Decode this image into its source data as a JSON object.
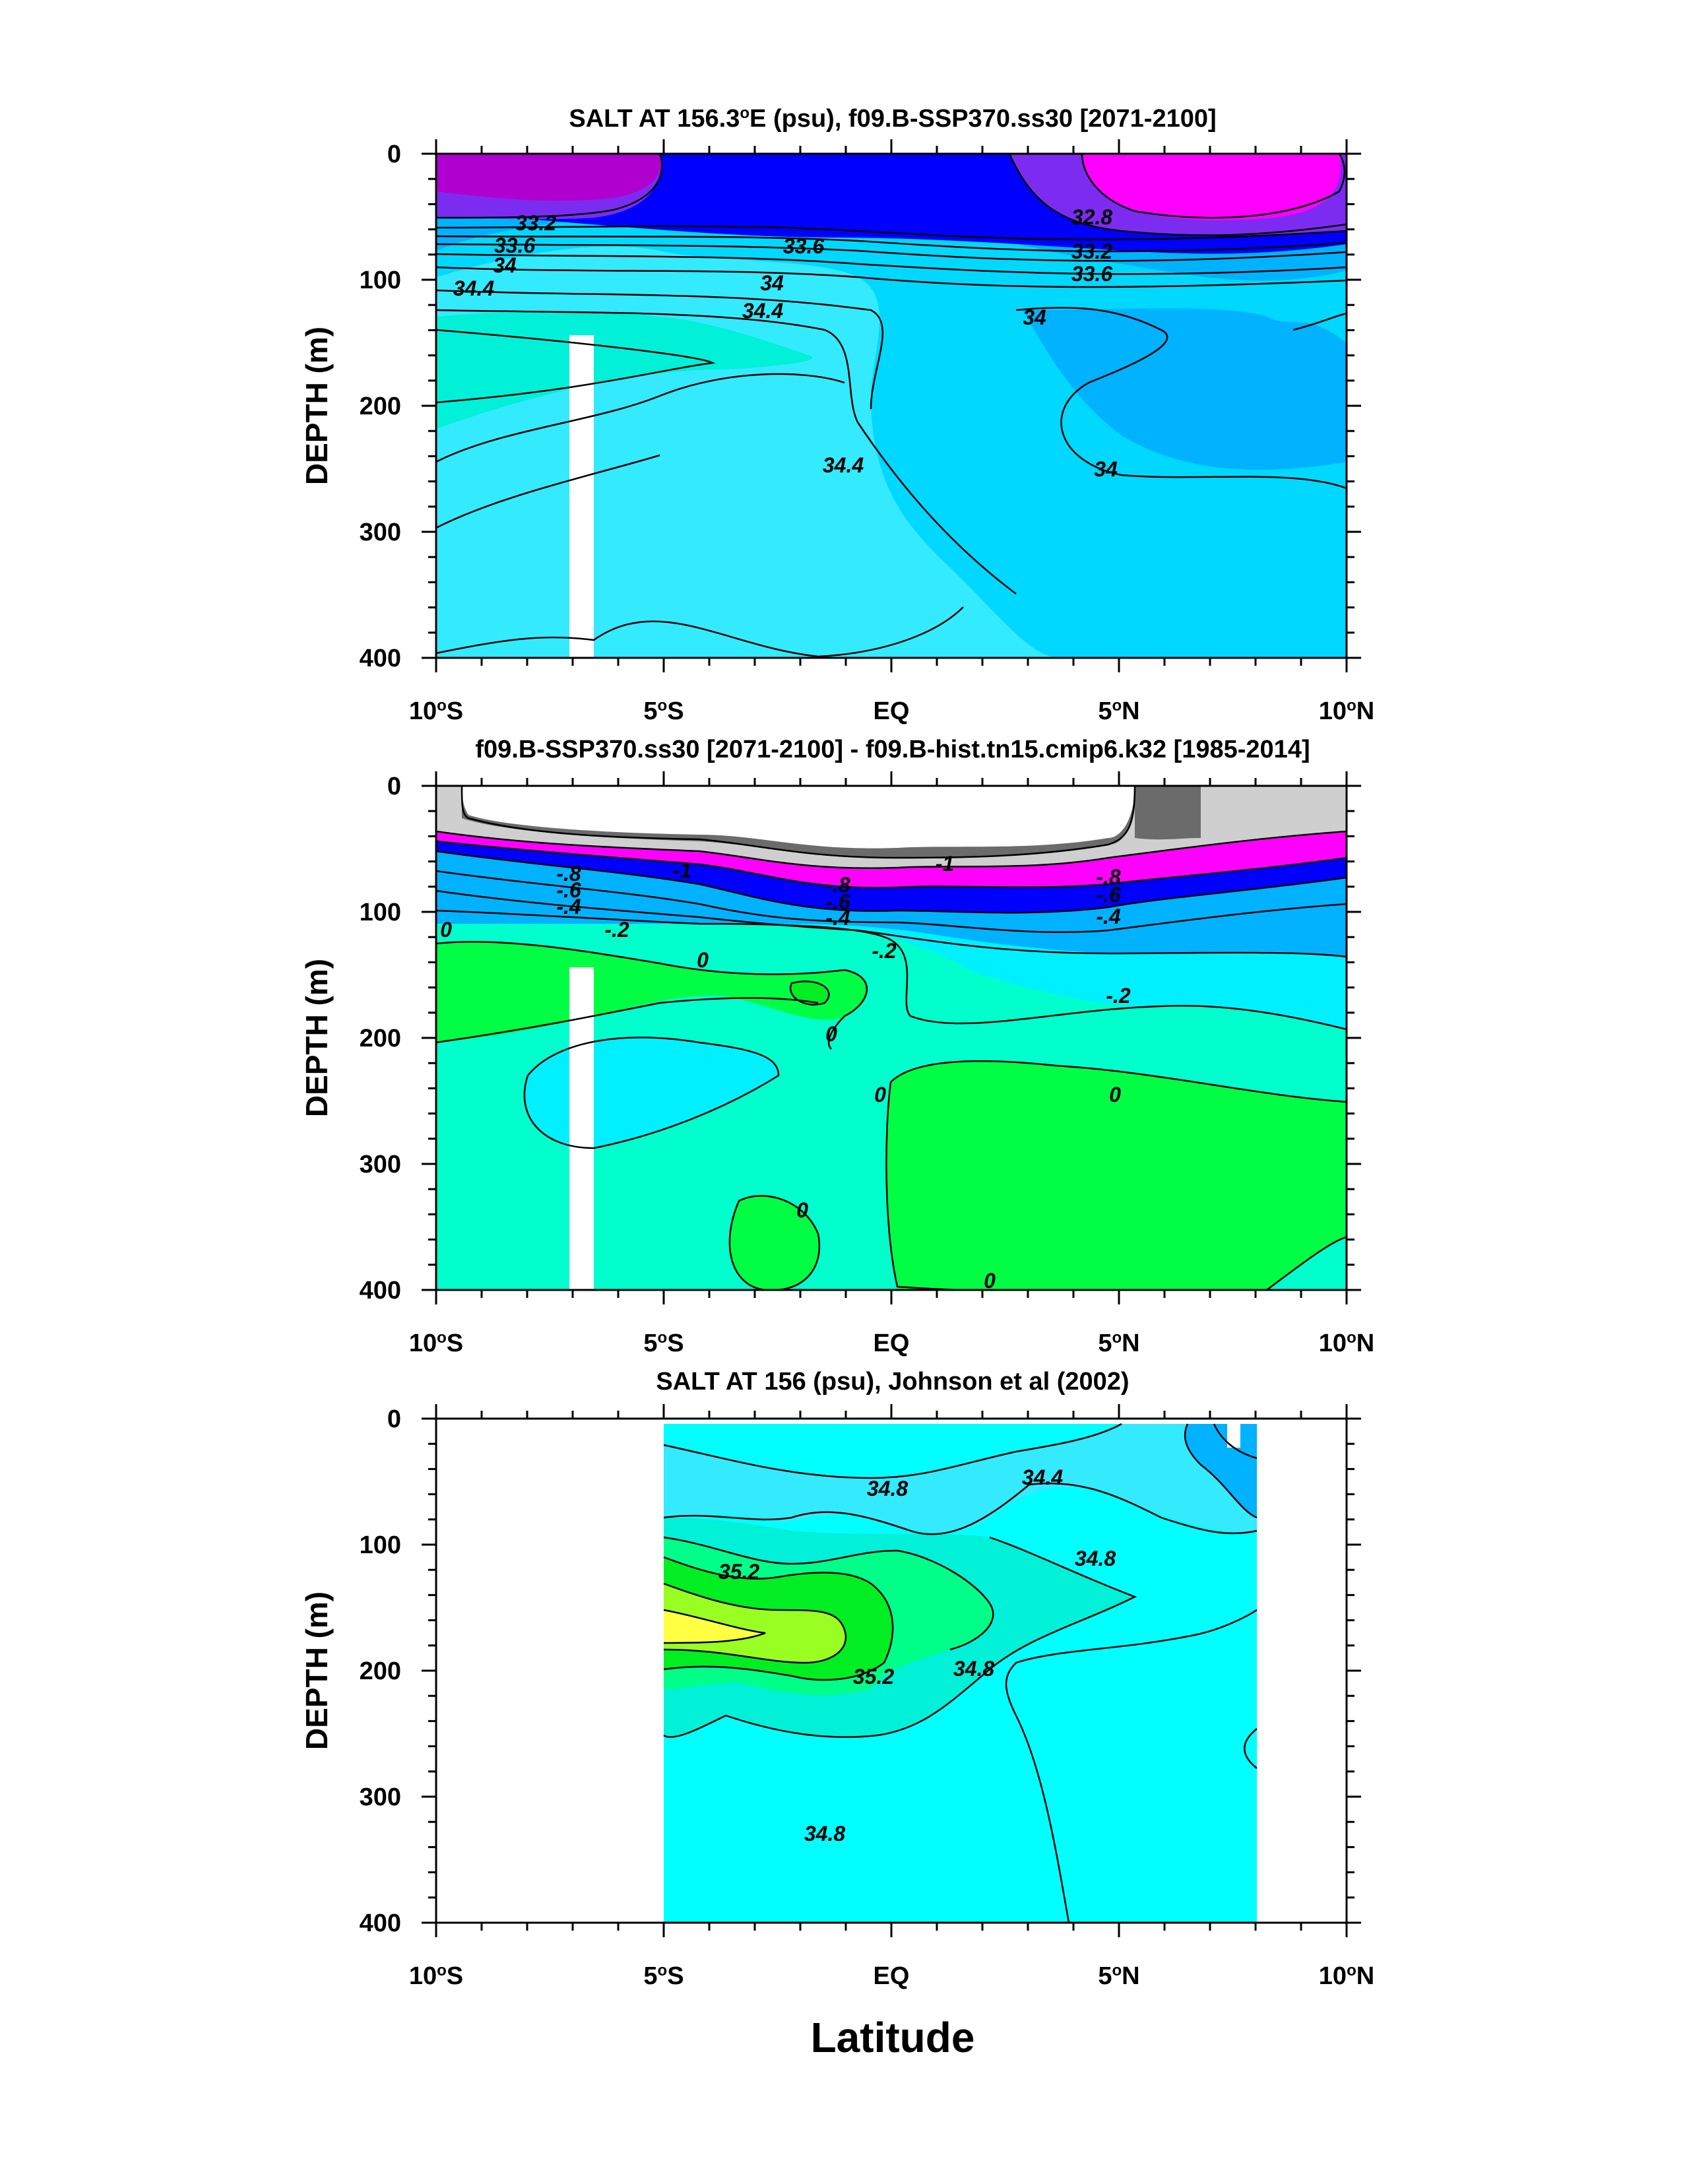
{
  "chart_data": [
    {
      "type": "contour",
      "title": "SALT AT 156.3°E (psu), f09.B-SSP370.ss30 [2071-2100]",
      "title_main": "SALT AT 156.3",
      "title_sup": "o",
      "title_rest": "E (psu), f09.B-SSP370.ss30 [2071-2100]",
      "xlabel": "",
      "ylabel": "DEPTH (m)",
      "xlim": [
        -10,
        10
      ],
      "ylim": [
        400,
        0
      ],
      "yticks": [
        "0",
        "100",
        "200",
        "300",
        "400"
      ],
      "xticks": [
        {
          "num": "10",
          "sup": "o",
          "hemi": "S"
        },
        {
          "num": "5",
          "sup": "o",
          "hemi": "S"
        },
        {
          "num": "EQ",
          "sup": "",
          "hemi": ""
        },
        {
          "num": "5",
          "sup": "o",
          "hemi": "N"
        },
        {
          "num": "10",
          "sup": "o",
          "hemi": "N"
        }
      ],
      "contour_labels": [
        "33.2",
        "33.6",
        "34",
        "34.4",
        "33.6",
        "34",
        "34.4",
        "32.8",
        "33.2",
        "33.6",
        "34",
        "34.4",
        "34"
      ],
      "levels": [
        32.8,
        33.2,
        33.6,
        34,
        34.4
      ],
      "colors": [
        "#ff00ff",
        "#7b2cf0",
        "#0000ff",
        "#00b2ff",
        "#33eaff",
        "#00f0d8"
      ]
    },
    {
      "type": "contour",
      "title": "f09.B-SSP370.ss30 [2071-2100] - f09.B-hist.tn15.cmip6.k32 [1985-2014]",
      "title_main": "f09.B-SSP370.ss30 [2071-2100] - f09.B-hist.tn15.cmip6.k32 [1985-2014]",
      "title_sup": "",
      "title_rest": "",
      "xlabel": "",
      "ylabel": "DEPTH (m)",
      "xlim": [
        -10,
        10
      ],
      "ylim": [
        400,
        0
      ],
      "yticks": [
        "0",
        "100",
        "200",
        "300",
        "400"
      ],
      "xticks": [
        {
          "num": "10",
          "sup": "o",
          "hemi": "S"
        },
        {
          "num": "5",
          "sup": "o",
          "hemi": "S"
        },
        {
          "num": "EQ",
          "sup": "",
          "hemi": ""
        },
        {
          "num": "5",
          "sup": "o",
          "hemi": "N"
        },
        {
          "num": "10",
          "sup": "o",
          "hemi": "N"
        }
      ],
      "contour_labels": [
        "-.8",
        "-.6",
        "-.4",
        "0",
        "-.2",
        "-1",
        "-.8",
        "-.6",
        "-.4",
        "-1",
        "-.8",
        "-.6",
        "-.4",
        "0",
        "0",
        "-.2",
        "-.2",
        "0",
        "0",
        "0",
        "0"
      ],
      "levels": [
        -1,
        -0.8,
        -0.6,
        -0.4,
        -0.2,
        0
      ],
      "colors": [
        "#6b6b6b",
        "#cfcfcf",
        "#ff00ff",
        "#0000ff",
        "#00b2ff",
        "#00f0ff",
        "#00ffcc",
        "#00ff44"
      ]
    },
    {
      "type": "contour",
      "title": "SALT AT 156 (psu), Johnson et al (2002)",
      "title_main": "SALT AT 156 (psu), Johnson et al (2002)",
      "title_sup": "",
      "title_rest": "",
      "xlabel": "Latitude",
      "ylabel": "DEPTH (m)",
      "xlim": [
        -10,
        10
      ],
      "ylim": [
        400,
        0
      ],
      "data_xrange": [
        -5,
        8
      ],
      "yticks": [
        "0",
        "100",
        "200",
        "300",
        "400"
      ],
      "xticks": [
        {
          "num": "10",
          "sup": "o",
          "hemi": "S"
        },
        {
          "num": "5",
          "sup": "o",
          "hemi": "S"
        },
        {
          "num": "EQ",
          "sup": "",
          "hemi": ""
        },
        {
          "num": "5",
          "sup": "o",
          "hemi": "N"
        },
        {
          "num": "10",
          "sup": "o",
          "hemi": "N"
        }
      ],
      "contour_labels": [
        "34.8",
        "34.4",
        "35.2",
        "34.8",
        "35.2",
        "34.8",
        "34.8"
      ],
      "levels": [
        34.4,
        34.8,
        35.2
      ],
      "colors": [
        "#00b2ff",
        "#33eaff",
        "#00ffff",
        "#00f0d8",
        "#00ff88",
        "#00ee22",
        "#99ff22",
        "#ffff44"
      ]
    }
  ]
}
